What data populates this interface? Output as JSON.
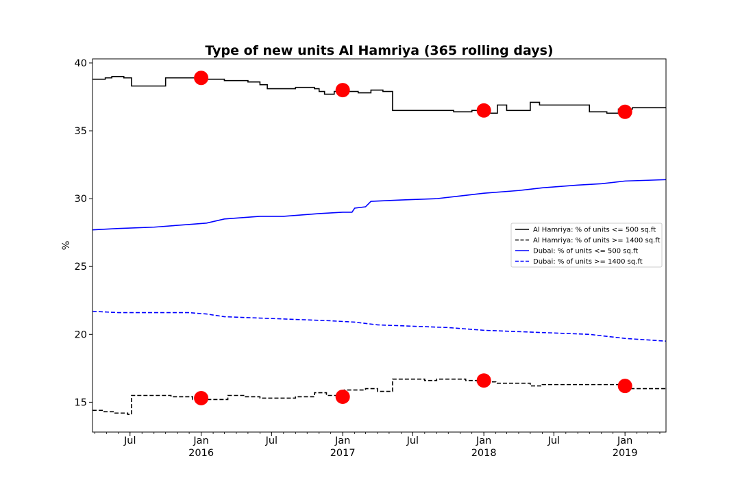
{
  "chart_data": {
    "type": "line",
    "title": "Type of new units Al Hamriya (365 rolling days)",
    "xlabel": "",
    "ylabel": "%",
    "ylim": [
      12.8,
      40.3
    ],
    "xlim": [
      "2015-03-26",
      "2019-04-17"
    ],
    "yticks": [
      15,
      20,
      25,
      30,
      35,
      40
    ],
    "xticks": [
      {
        "date": "2015-07-01",
        "label": "Jul",
        "sub": ""
      },
      {
        "date": "2016-01-01",
        "label": "Jan",
        "sub": "2016"
      },
      {
        "date": "2016-07-01",
        "label": "Jul",
        "sub": ""
      },
      {
        "date": "2017-01-01",
        "label": "Jan",
        "sub": "2017"
      },
      {
        "date": "2017-07-01",
        "label": "Jul",
        "sub": ""
      },
      {
        "date": "2018-01-01",
        "label": "Jan",
        "sub": "2018"
      },
      {
        "date": "2018-07-01",
        "label": "Jul",
        "sub": ""
      },
      {
        "date": "2019-01-01",
        "label": "Jan",
        "sub": "2019"
      }
    ],
    "grid": false,
    "legend_position": "center-right",
    "series": [
      {
        "name": "Al Hamriya: % of units <= 500 sq.ft",
        "color": "#000000",
        "style": "solid",
        "step": true,
        "points": [
          [
            "2015-03-26",
            38.8
          ],
          [
            "2015-04-20",
            38.8
          ],
          [
            "2015-04-28",
            38.9
          ],
          [
            "2015-05-15",
            39.0
          ],
          [
            "2015-06-15",
            38.9
          ],
          [
            "2015-07-05",
            38.3
          ],
          [
            "2015-09-01",
            38.3
          ],
          [
            "2015-10-01",
            38.9
          ],
          [
            "2015-11-15",
            38.9
          ],
          [
            "2016-01-10",
            38.8
          ],
          [
            "2016-03-01",
            38.7
          ],
          [
            "2016-05-01",
            38.6
          ],
          [
            "2016-06-01",
            38.4
          ],
          [
            "2016-06-20",
            38.1
          ],
          [
            "2016-08-15",
            38.1
          ],
          [
            "2016-09-01",
            38.2
          ],
          [
            "2016-10-20",
            38.1
          ],
          [
            "2016-11-01",
            37.9
          ],
          [
            "2016-11-15",
            37.7
          ],
          [
            "2016-12-10",
            37.9
          ],
          [
            "2017-01-20",
            37.9
          ],
          [
            "2017-02-10",
            37.8
          ],
          [
            "2017-03-15",
            38.0
          ],
          [
            "2017-04-15",
            37.9
          ],
          [
            "2017-05-10",
            36.5
          ],
          [
            "2017-07-01",
            36.5
          ],
          [
            "2017-10-15",
            36.4
          ],
          [
            "2017-12-01",
            36.5
          ],
          [
            "2018-01-15",
            36.3
          ],
          [
            "2018-02-05",
            36.9
          ],
          [
            "2018-03-01",
            36.5
          ],
          [
            "2018-05-01",
            37.1
          ],
          [
            "2018-05-25",
            36.9
          ],
          [
            "2018-08-01",
            36.9
          ],
          [
            "2018-09-15",
            36.9
          ],
          [
            "2018-10-01",
            36.4
          ],
          [
            "2018-11-15",
            36.3
          ],
          [
            "2018-12-15",
            36.6
          ],
          [
            "2019-01-20",
            36.7
          ],
          [
            "2019-04-17",
            36.7
          ]
        ]
      },
      {
        "name": "Al Hamriya: % of units >= 1400 sq.ft",
        "color": "#000000",
        "style": "dashed",
        "step": true,
        "points": [
          [
            "2015-03-26",
            14.4
          ],
          [
            "2015-04-25",
            14.3
          ],
          [
            "2015-05-20",
            14.2
          ],
          [
            "2015-06-25",
            14.1
          ],
          [
            "2015-07-05",
            15.5
          ],
          [
            "2015-10-15",
            15.4
          ],
          [
            "2015-12-10",
            15.2
          ],
          [
            "2016-01-15",
            15.2
          ],
          [
            "2016-02-10",
            15.2
          ],
          [
            "2016-03-10",
            15.5
          ],
          [
            "2016-04-20",
            15.4
          ],
          [
            "2016-06-01",
            15.3
          ],
          [
            "2016-09-01",
            15.4
          ],
          [
            "2016-10-20",
            15.7
          ],
          [
            "2016-11-20",
            15.5
          ],
          [
            "2017-01-05",
            15.9
          ],
          [
            "2017-03-01",
            16.0
          ],
          [
            "2017-04-01",
            15.8
          ],
          [
            "2017-05-10",
            16.7
          ],
          [
            "2017-08-01",
            16.6
          ],
          [
            "2017-09-01",
            16.7
          ],
          [
            "2017-11-15",
            16.6
          ],
          [
            "2017-12-15",
            16.5
          ],
          [
            "2018-02-01",
            16.4
          ],
          [
            "2018-04-15",
            16.4
          ],
          [
            "2018-05-01",
            16.2
          ],
          [
            "2018-06-01",
            16.3
          ],
          [
            "2018-11-15",
            16.3
          ],
          [
            "2019-01-05",
            16.0
          ],
          [
            "2019-04-17",
            16.0
          ]
        ]
      },
      {
        "name": "Dubai: % of units <= 500 sq.ft",
        "color": "#0000ff",
        "style": "solid",
        "step": false,
        "points": [
          [
            "2015-03-26",
            27.7
          ],
          [
            "2015-06-01",
            27.8
          ],
          [
            "2015-09-01",
            27.9
          ],
          [
            "2015-12-01",
            28.1
          ],
          [
            "2016-01-15",
            28.2
          ],
          [
            "2016-03-01",
            28.5
          ],
          [
            "2016-06-01",
            28.7
          ],
          [
            "2016-08-01",
            28.7
          ],
          [
            "2016-11-01",
            28.9
          ],
          [
            "2017-01-01",
            29.0
          ],
          [
            "2017-01-25",
            29.0
          ],
          [
            "2017-02-01",
            29.3
          ],
          [
            "2017-03-01",
            29.4
          ],
          [
            "2017-03-15",
            29.8
          ],
          [
            "2017-06-01",
            29.9
          ],
          [
            "2017-09-01",
            30.0
          ],
          [
            "2017-11-01",
            30.2
          ],
          [
            "2018-01-01",
            30.4
          ],
          [
            "2018-04-01",
            30.6
          ],
          [
            "2018-06-01",
            30.8
          ],
          [
            "2018-09-01",
            31.0
          ],
          [
            "2018-11-01",
            31.1
          ],
          [
            "2019-01-01",
            31.3
          ],
          [
            "2019-04-17",
            31.4
          ]
        ]
      },
      {
        "name": "Dubai: % of units >= 1400 sq.ft",
        "color": "#0000ff",
        "style": "dashed",
        "step": false,
        "points": [
          [
            "2015-03-26",
            21.7
          ],
          [
            "2015-06-01",
            21.6
          ],
          [
            "2015-09-01",
            21.6
          ],
          [
            "2015-12-01",
            21.6
          ],
          [
            "2016-01-15",
            21.5
          ],
          [
            "2016-03-01",
            21.3
          ],
          [
            "2016-06-01",
            21.2
          ],
          [
            "2016-09-01",
            21.1
          ],
          [
            "2016-12-01",
            21.0
          ],
          [
            "2017-02-01",
            20.9
          ],
          [
            "2017-04-01",
            20.7
          ],
          [
            "2017-07-01",
            20.6
          ],
          [
            "2017-10-01",
            20.5
          ],
          [
            "2018-01-01",
            20.3
          ],
          [
            "2018-04-01",
            20.2
          ],
          [
            "2018-07-01",
            20.1
          ],
          [
            "2018-10-01",
            20.0
          ],
          [
            "2019-01-01",
            19.7
          ],
          [
            "2019-04-17",
            19.5
          ]
        ]
      }
    ],
    "markers": [
      {
        "date": "2016-01-01",
        "value": 38.9,
        "color": "#ff0000"
      },
      {
        "date": "2017-01-01",
        "value": 38.0,
        "color": "#ff0000"
      },
      {
        "date": "2018-01-01",
        "value": 36.5,
        "color": "#ff0000"
      },
      {
        "date": "2019-01-01",
        "value": 36.4,
        "color": "#ff0000"
      },
      {
        "date": "2016-01-01",
        "value": 15.3,
        "color": "#ff0000"
      },
      {
        "date": "2017-01-01",
        "value": 15.4,
        "color": "#ff0000"
      },
      {
        "date": "2018-01-01",
        "value": 16.6,
        "color": "#ff0000"
      },
      {
        "date": "2019-01-01",
        "value": 16.2,
        "color": "#ff0000"
      }
    ]
  }
}
